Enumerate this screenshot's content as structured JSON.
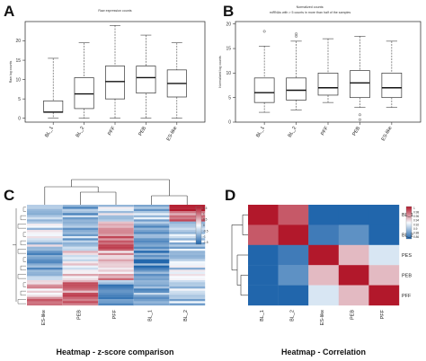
{
  "panels": {
    "A": {
      "letter": "A",
      "chart_data": {
        "type": "box",
        "title": "Raw expression counts",
        "ylabel": "Raw log counts",
        "ylim": [
          -1,
          25
        ],
        "yticks": [
          0,
          5,
          10,
          15,
          20
        ],
        "categories": [
          "BL_1",
          "BL_2",
          "PFF",
          "PEB",
          "ES-like"
        ],
        "boxes": [
          {
            "low": 0,
            "q1": 1.5,
            "median": 1.6,
            "q3": 4.5,
            "high": 15.5
          },
          {
            "low": 0,
            "q1": 2.5,
            "median": 6.3,
            "q3": 10.5,
            "high": 19.5
          },
          {
            "low": 0,
            "q1": 5,
            "median": 9.5,
            "q3": 13.5,
            "high": 24
          },
          {
            "low": 0,
            "q1": 6.5,
            "median": 10.5,
            "q3": 13.5,
            "high": 21.5
          },
          {
            "low": 0,
            "q1": 5.5,
            "median": 9,
            "q3": 12.5,
            "high": 19.5
          }
        ],
        "outliers": []
      }
    },
    "B": {
      "letter": "B",
      "chart_data": {
        "type": "box",
        "title": "Normalized counts:",
        "subtitle": "miRNAs with > 5 counts in more than half of the samples",
        "ylabel": "Normalized log counts",
        "ylim": [
          0,
          20.5
        ],
        "yticks": [
          0,
          5,
          10,
          15,
          20
        ],
        "categories": [
          "BL_1",
          "BL_2",
          "PFF",
          "PEB",
          "ES-like"
        ],
        "boxes": [
          {
            "low": 2,
            "q1": 4,
            "median": 6,
            "q3": 9,
            "high": 15.5
          },
          {
            "low": 2.5,
            "q1": 4.5,
            "median": 6.5,
            "q3": 9,
            "high": 16.5
          },
          {
            "low": 4,
            "q1": 5.5,
            "median": 7,
            "q3": 10,
            "high": 17
          },
          {
            "low": 3,
            "q1": 5,
            "median": 8,
            "q3": 10.5,
            "high": 17.5
          },
          {
            "low": 3,
            "q1": 5,
            "median": 7,
            "q3": 10,
            "high": 16.5
          }
        ],
        "outliers": [
          {
            "category": "BL_1",
            "value": 18.5
          },
          {
            "category": "BL_2",
            "value": 18
          },
          {
            "category": "BL_2",
            "value": 17.5
          },
          {
            "category": "PEB",
            "value": 1.5
          },
          {
            "category": "PEB",
            "value": 0.5
          }
        ]
      }
    },
    "C": {
      "letter": "C",
      "caption": "Heatmap - z-score comparison",
      "chart_data": {
        "type": "heatmap",
        "columns": [
          "ES-like",
          "PEB",
          "PFF",
          "BL_1",
          "BL_2"
        ],
        "n_rows": 48,
        "color_scale": {
          "low": "#2166ac",
          "mid": "#f7fbff",
          "high": "#b2182b"
        },
        "legend_ticks": [
          "1.5",
          "1",
          "0.5",
          "0",
          "-0.5",
          "-1",
          "-1.5"
        ]
      }
    },
    "D": {
      "letter": "D",
      "caption": "Heatmap - Correlation",
      "chart_data": {
        "type": "heatmap",
        "columns": [
          "BL_1",
          "BL_2",
          "ES-like",
          "PEB",
          "PFF"
        ],
        "rows": [
          "BL_1",
          "BL_2",
          "PES",
          "PEB",
          "PFF"
        ],
        "values": [
          [
            1.0,
            0.98,
            0.86,
            0.85,
            0.86
          ],
          [
            0.98,
            1.0,
            0.87,
            0.88,
            0.86
          ],
          [
            0.86,
            0.87,
            1.0,
            0.95,
            0.92
          ],
          [
            0.85,
            0.88,
            0.95,
            1.0,
            0.95
          ],
          [
            0.86,
            0.86,
            0.92,
            0.95,
            1.0
          ]
        ],
        "color_scale": {
          "low": "#2166ac",
          "mid": "#f7fbff",
          "high": "#b2182b"
        },
        "legend_ticks": [
          "1",
          "0.98",
          "0.96",
          "0.94",
          "0.92",
          "0.9",
          "0.88",
          "0.86"
        ]
      }
    }
  }
}
